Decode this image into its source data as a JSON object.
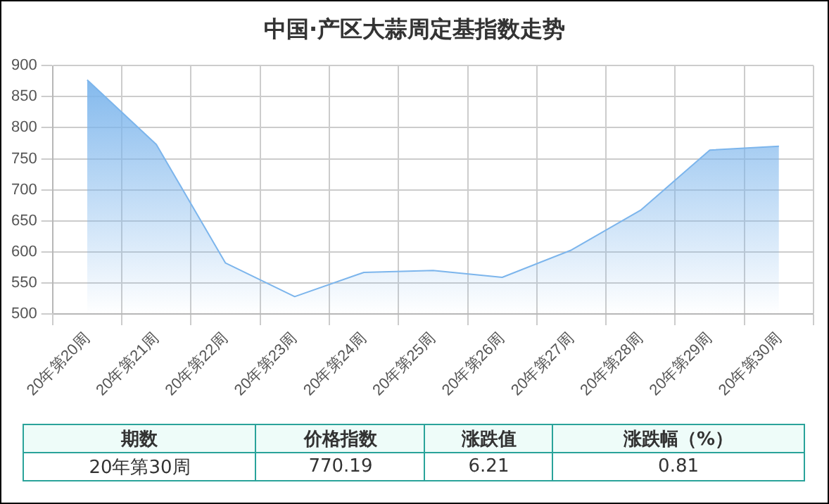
{
  "chart_data": {
    "type": "area",
    "title": "中国·产区大蒜周定基指数走势",
    "categories": [
      "20年第20周",
      "20年第21周",
      "20年第22周",
      "20年第23周",
      "20年第24周",
      "20年第25周",
      "20年第26周",
      "20年第27周",
      "20年第28周",
      "20年第29周",
      "20年第30周"
    ],
    "series": [
      {
        "color": "#7cb5ec",
        "values": [
          877,
          773,
          582,
          528,
          567,
          570,
          559,
          603,
          667,
          764,
          770.19
        ]
      }
    ],
    "ylim": [
      500,
      900
    ],
    "yticks": [
      500,
      550,
      600,
      650,
      700,
      750,
      800,
      850,
      900
    ],
    "grid": true,
    "marker": "none",
    "annotations": [
      "期数",
      "价格指数",
      "涨跌值",
      "涨跌幅（%）",
      "20年第30周",
      "770.19",
      "6.21",
      "0.81"
    ]
  }
}
